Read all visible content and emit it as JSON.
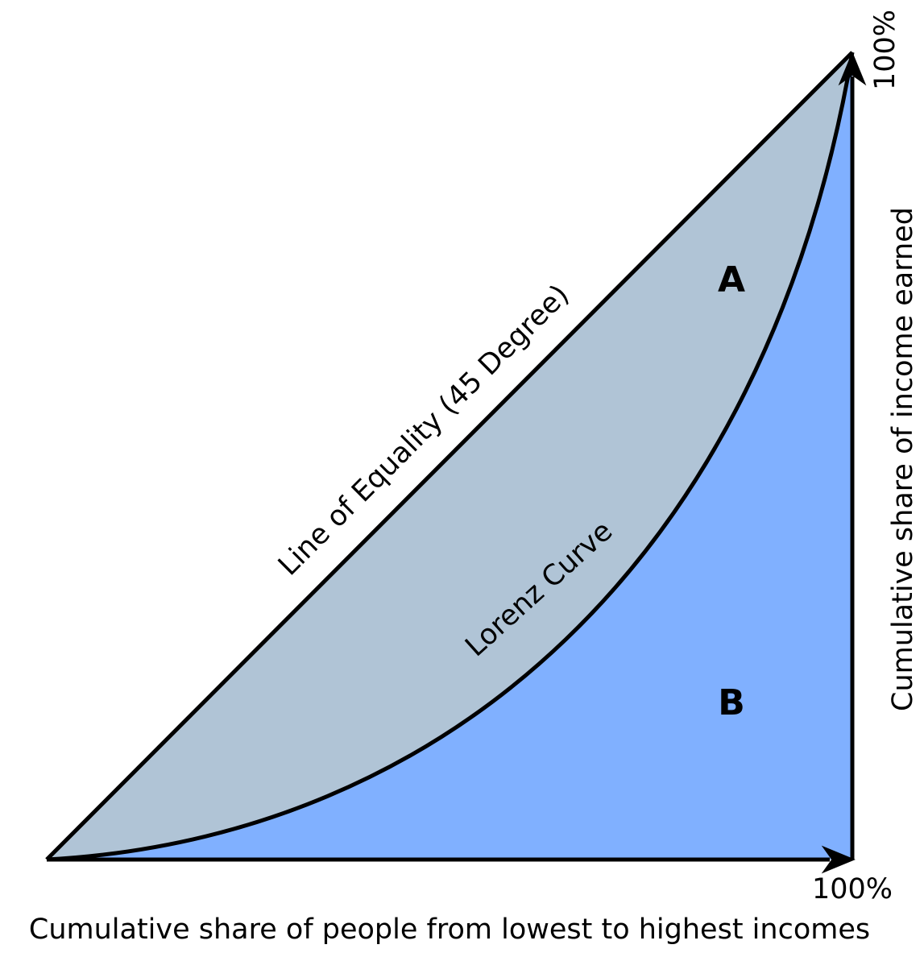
{
  "diagram": {
    "equality_line_label": "Line of Equality (45 Degree)",
    "curve_label": "Lorenz Curve",
    "region_a": "A",
    "region_b": "B",
    "y_axis_label": "Cumulative share of income earned",
    "y_axis_end": "100%",
    "x_axis_label": "Cumulative share of people from lowest to highest incomes",
    "x_axis_end": "100%"
  }
}
